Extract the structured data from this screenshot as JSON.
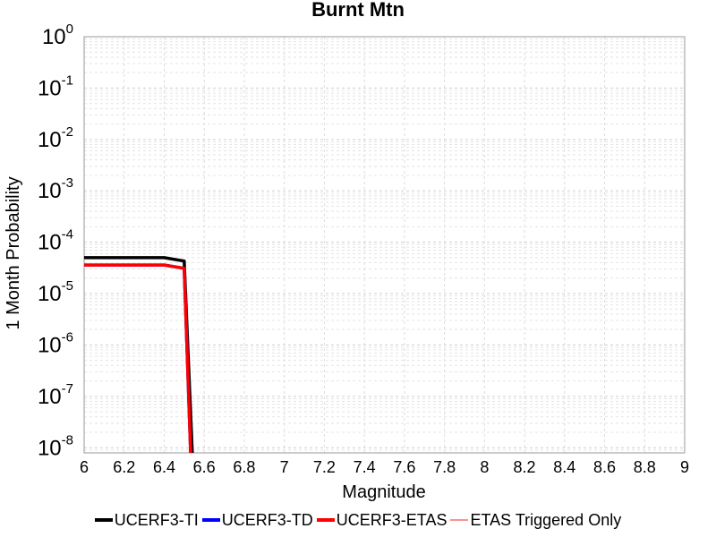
{
  "chart_data": {
    "type": "line",
    "title": "Burnt Mtn",
    "xlabel": "Magnitude",
    "ylabel": "1 Month Probability",
    "y_scale": "log",
    "xlim": [
      6,
      9
    ],
    "ylim_exponents": [
      -8.1,
      0
    ],
    "x_ticks": [
      "6",
      "6.2",
      "6.4",
      "6.6",
      "6.8",
      "7",
      "7.2",
      "7.4",
      "7.6",
      "7.8",
      "8",
      "8.2",
      "8.4",
      "8.6",
      "8.8",
      "9"
    ],
    "y_ticks": [
      {
        "base": "10",
        "exp": "0"
      },
      {
        "base": "10",
        "exp": "-1"
      },
      {
        "base": "10",
        "exp": "-2"
      },
      {
        "base": "10",
        "exp": "-3"
      },
      {
        "base": "10",
        "exp": "-4"
      },
      {
        "base": "10",
        "exp": "-5"
      },
      {
        "base": "10",
        "exp": "-6"
      },
      {
        "base": "10",
        "exp": "-7"
      },
      {
        "base": "10",
        "exp": "-8"
      }
    ],
    "grid": true,
    "legend_position": "bottom",
    "series": [
      {
        "name": "UCERF3-TI",
        "color": "#000000",
        "x": [
          6.0,
          6.4,
          6.5,
          6.55
        ],
        "y": [
          5e-05,
          5e-05,
          4.3e-05,
          1e-09
        ]
      },
      {
        "name": "UCERF3-TD",
        "color": "#0000ff",
        "x": [
          6.0,
          6.4,
          6.5,
          6.54
        ],
        "y": [
          3.6e-05,
          3.6e-05,
          3.1e-05,
          1e-09
        ]
      },
      {
        "name": "UCERF3-ETAS",
        "color": "#ff0000",
        "x": [
          6.0,
          6.4,
          6.5,
          6.54
        ],
        "y": [
          3.6e-05,
          3.6e-05,
          3.1e-05,
          1e-09
        ]
      },
      {
        "name": "ETAS Triggered Only",
        "color": "#ff9090",
        "x": [],
        "y": []
      }
    ]
  }
}
